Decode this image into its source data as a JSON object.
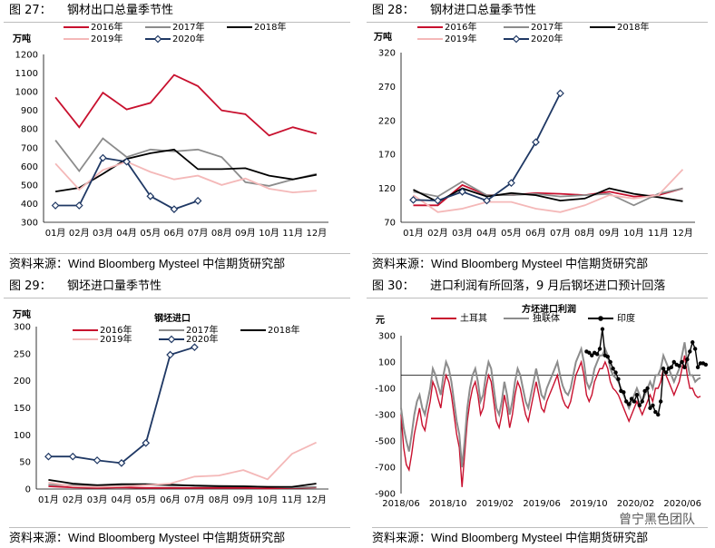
{
  "colors": {
    "s2016": "#c8102e",
    "s2017": "#8c8c8c",
    "s2018": "#000000",
    "s2019": "#f4b8b8",
    "s2020": "#1f3864",
    "turkey": "#c8102e",
    "cis": "#8c8c8c",
    "india": "#000000"
  },
  "source_text": "资料来源：Wind Bloomberg Mysteel 中信期货研究部",
  "watermark": "曾宁黑色团队",
  "fig27": {
    "label": "图  27：",
    "title": "钢材出口总量季节性",
    "chart_data": {
      "type": "line",
      "unit": "万吨",
      "categories": [
        "01月",
        "02月",
        "03月",
        "04月",
        "05月",
        "06月",
        "07月",
        "08月",
        "09月",
        "10月",
        "11月",
        "12月"
      ],
      "ylim": [
        300,
        1200
      ],
      "yticks": [
        300,
        400,
        500,
        600,
        700,
        800,
        900,
        1000,
        1100,
        1200
      ],
      "series": [
        {
          "name": "2016年",
          "key": "s2016",
          "values": [
            970,
            810,
            995,
            905,
            940,
            1090,
            1030,
            900,
            880,
            765,
            810,
            775
          ]
        },
        {
          "name": "2017年",
          "key": "s2017",
          "values": [
            740,
            575,
            750,
            650,
            690,
            680,
            690,
            650,
            515,
            495,
            530,
            560
          ]
        },
        {
          "name": "2018年",
          "key": "s2018",
          "values": [
            465,
            485,
            560,
            640,
            670,
            690,
            585,
            585,
            590,
            550,
            530,
            555
          ]
        },
        {
          "name": "2019年",
          "key": "s2019",
          "values": [
            615,
            475,
            580,
            625,
            570,
            530,
            550,
            500,
            535,
            480,
            460,
            470
          ]
        },
        {
          "name": "2020年",
          "key": "s2020",
          "marker": true,
          "values": [
            390,
            390,
            645,
            625,
            440,
            370,
            415,
            null,
            null,
            null,
            null,
            null
          ]
        }
      ]
    }
  },
  "fig28": {
    "label": "图  28：",
    "title": "钢材进口总量季节性",
    "chart_data": {
      "type": "line",
      "unit": "万吨",
      "categories": [
        "01月",
        "02月",
        "03月",
        "04月",
        "05月",
        "06月",
        "07月",
        "08月",
        "09月",
        "10月",
        "11月",
        "12月"
      ],
      "ylim": [
        70,
        320
      ],
      "yticks": [
        70,
        120,
        170,
        220,
        270,
        320
      ],
      "series": [
        {
          "name": "2016年",
          "key": "s2016",
          "values": [
            95,
            95,
            125,
            110,
            110,
            113,
            112,
            110,
            115,
            108,
            110,
            120
          ]
        },
        {
          "name": "2017年",
          "key": "s2017",
          "values": [
            115,
            108,
            130,
            110,
            110,
            112,
            108,
            110,
            112,
            95,
            112,
            120
          ]
        },
        {
          "name": "2018年",
          "key": "s2018",
          "values": [
            118,
            100,
            120,
            108,
            113,
            110,
            102,
            105,
            120,
            112,
            107,
            101
          ]
        },
        {
          "name": "2019年",
          "key": "s2019",
          "values": [
            110,
            85,
            90,
            100,
            100,
            90,
            85,
            95,
            110,
            105,
            110,
            148
          ]
        },
        {
          "name": "2020年",
          "key": "s2020",
          "marker": true,
          "values": [
            103,
            102,
            115,
            102,
            128,
            188,
            260,
            null,
            null,
            null,
            null,
            null
          ]
        }
      ]
    }
  },
  "fig29": {
    "label": "图  29：",
    "title": "钢坯进口量季节性",
    "chart_data": {
      "type": "line",
      "unit": "万吨",
      "title": "钢坯进口",
      "categories": [
        "01月",
        "02月",
        "03月",
        "04月",
        "05月",
        "06月",
        "07月",
        "08月",
        "09月",
        "10月",
        "11月",
        "12月"
      ],
      "ylim": [
        0,
        300
      ],
      "yticks": [
        0,
        50,
        100,
        150,
        200,
        250,
        300
      ],
      "series": [
        {
          "name": "2016年",
          "key": "s2016",
          "values": [
            5,
            3,
            2,
            3,
            2,
            2,
            2,
            2,
            2,
            1,
            2,
            3
          ]
        },
        {
          "name": "2017年",
          "key": "s2017",
          "values": [
            8,
            7,
            7,
            6,
            8,
            6,
            7,
            6,
            5,
            4,
            3,
            4
          ]
        },
        {
          "name": "2018年",
          "key": "s2018",
          "values": [
            17,
            10,
            7,
            9,
            9,
            8,
            6,
            5,
            5,
            4,
            4,
            10
          ]
        },
        {
          "name": "2019年",
          "key": "s2019",
          "values": [
            12,
            5,
            4,
            5,
            7,
            10,
            23,
            25,
            35,
            18,
            65,
            86
          ]
        },
        {
          "name": "2020年",
          "key": "s2020",
          "marker": true,
          "values": [
            60,
            60,
            53,
            48,
            85,
            248,
            262,
            null,
            null,
            null,
            null,
            null
          ]
        }
      ]
    }
  },
  "fig30": {
    "label": "图  30：",
    "title": "进口利润有所回落，9 月后钢坯进口预计回落",
    "chart_data": {
      "type": "line",
      "unit": "元",
      "title": "方坯进口利润",
      "x_labels": [
        "2018/06",
        "2018/10",
        "2019/02",
        "2019/06",
        "2019/10",
        "2020/02",
        "2020/06"
      ],
      "ylim": [
        -900,
        300
      ],
      "yticks": [
        -900,
        -700,
        -500,
        -300,
        -100,
        100,
        300
      ],
      "series": [
        {
          "name": "土耳其",
          "key": "turkey",
          "values": [
            -300,
            -550,
            -680,
            -720,
            -600,
            -450,
            -350,
            -250,
            -380,
            -420,
            -300,
            -200,
            -50,
            -100,
            -180,
            -250,
            -100,
            0,
            -50,
            -150,
            -300,
            -450,
            -550,
            -850,
            -600,
            -350,
            -200,
            -100,
            -50,
            -150,
            -300,
            -250,
            -100,
            0,
            -50,
            -200,
            -350,
            -400,
            -300,
            -150,
            -250,
            -400,
            -300,
            -150,
            -50,
            -100,
            -200,
            -300,
            -350,
            -250,
            -150,
            -50,
            -150,
            -250,
            -280,
            -200,
            -150,
            -100,
            -50,
            0,
            -100,
            -180,
            -230,
            -250,
            -200,
            -100,
            0,
            50,
            100,
            0,
            -150,
            -200,
            -150,
            -50,
            0,
            50,
            50,
            100,
            50,
            -50,
            -100,
            -120,
            -150,
            -200,
            -250,
            -300,
            -350,
            -300,
            -250,
            -200,
            -250,
            -300,
            -250,
            -200,
            -150,
            -200,
            -100,
            -100,
            -50,
            50,
            0,
            -50,
            -100,
            -150,
            -100,
            -50,
            50,
            150,
            0,
            -100,
            -100,
            -150,
            -170,
            -160
          ]
        },
        {
          "name": "独联体",
          "key": "cis",
          "values": [
            -250,
            -400,
            -500,
            -580,
            -450,
            -300,
            -200,
            -150,
            -250,
            -300,
            -200,
            -100,
            50,
            0,
            -80,
            -150,
            0,
            100,
            50,
            -50,
            -200,
            -350,
            -450,
            -700,
            -500,
            -250,
            -100,
            0,
            50,
            -50,
            -200,
            -150,
            0,
            100,
            50,
            -100,
            -250,
            -300,
            -200,
            -50,
            -150,
            -300,
            -200,
            -50,
            50,
            0,
            -100,
            -200,
            -250,
            -150,
            -50,
            50,
            -50,
            -150,
            -180,
            -100,
            -50,
            0,
            50,
            100,
            0,
            -80,
            -130,
            -150,
            -100,
            0,
            100,
            150,
            200,
            100,
            -50,
            -100,
            -50,
            50,
            100,
            150,
            150,
            200,
            150,
            50,
            0,
            -20,
            -50,
            -100,
            -150,
            -200,
            -250,
            -200,
            -150,
            -100,
            -150,
            -200,
            -150,
            -100,
            -50,
            -100,
            0,
            0,
            50,
            150,
            100,
            50,
            0,
            -50,
            0,
            50,
            150,
            250,
            100,
            0,
            0,
            -50,
            -30,
            -20
          ]
        },
        {
          "name": "印度",
          "key": "india",
          "marker": true,
          "values": [
            null,
            null,
            null,
            null,
            null,
            null,
            null,
            null,
            null,
            null,
            null,
            null,
            null,
            null,
            null,
            null,
            null,
            null,
            null,
            null,
            null,
            null,
            null,
            null,
            null,
            null,
            null,
            null,
            null,
            null,
            null,
            null,
            null,
            null,
            null,
            null,
            null,
            null,
            null,
            null,
            null,
            null,
            null,
            null,
            null,
            null,
            null,
            null,
            null,
            null,
            null,
            null,
            null,
            null,
            null,
            null,
            null,
            null,
            null,
            null,
            null,
            null,
            null,
            null,
            null,
            null,
            null,
            null,
            null,
            null,
            180,
            170,
            150,
            170,
            160,
            200,
            350,
            150,
            140,
            100,
            50,
            20,
            -30,
            -120,
            -130,
            -200,
            -220,
            -180,
            -200,
            -150,
            -230,
            -200,
            -120,
            -100,
            -250,
            -230,
            -280,
            -300,
            -200,
            50,
            20,
            50,
            60,
            100,
            80,
            70,
            100,
            60,
            120,
            180,
            250,
            200,
            60,
            90,
            90,
            80
          ]
        }
      ]
    }
  }
}
